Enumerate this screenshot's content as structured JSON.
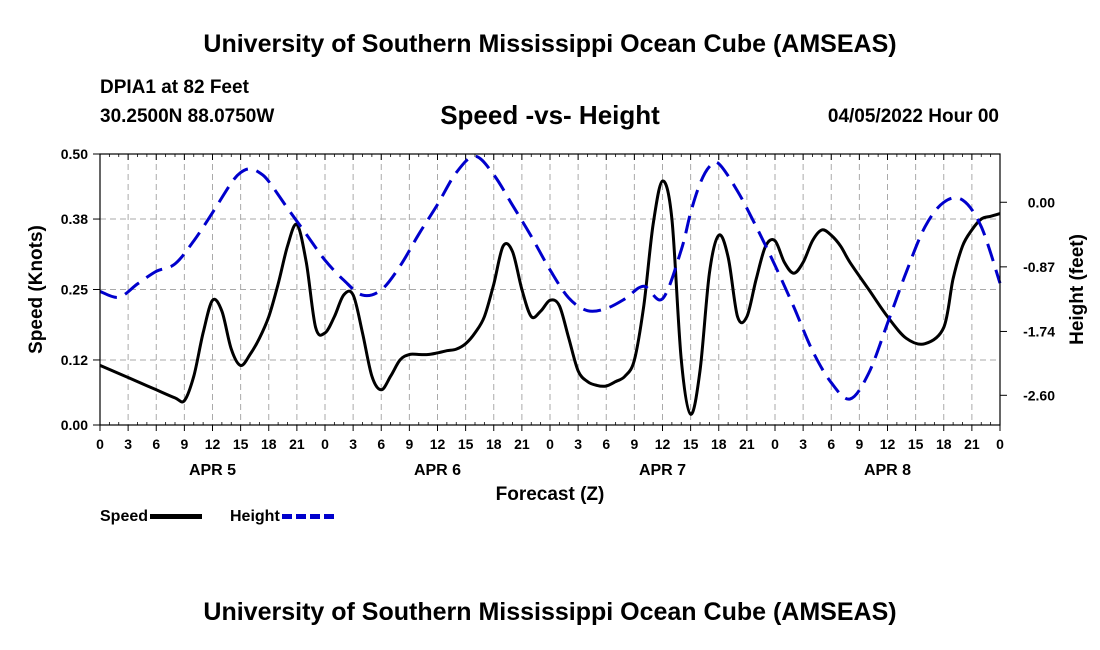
{
  "header": {
    "title": "University of Southern Mississippi Ocean Cube (AMSEAS)",
    "station": "DPIA1 at 82 Feet",
    "coords": "30.2500N  88.0750W",
    "subtitle": "Speed -vs- Height",
    "datetime": "04/05/2022 Hour 00"
  },
  "footer": {
    "title": "University of Southern Mississippi Ocean Cube (AMSEAS)"
  },
  "legend": {
    "speed_label": "Speed",
    "height_label": "Height"
  },
  "colors": {
    "speed": "#000000",
    "height": "#0000cc",
    "grid": "#aaaaaa"
  },
  "chart_data": {
    "type": "line",
    "title": "Speed -vs- Height",
    "xlabel": "Forecast (Z)",
    "ylabel_left": "Speed (Knots)",
    "ylabel_right": "Height (feet)",
    "x_unit": "hours since 04/05/2022 00Z",
    "xlim": [
      0,
      96
    ],
    "x_tick_values": [
      0,
      3,
      6,
      9,
      12,
      15,
      18,
      21,
      24,
      27,
      30,
      33,
      36,
      39,
      42,
      45,
      48,
      51,
      54,
      57,
      60,
      63,
      66,
      69,
      72,
      75,
      78,
      81,
      84,
      87,
      90,
      93,
      96
    ],
    "x_tick_labels": [
      "0",
      "3",
      "6",
      "9",
      "12",
      "15",
      "18",
      "21",
      "0",
      "3",
      "6",
      "9",
      "12",
      "15",
      "18",
      "21",
      "0",
      "3",
      "6",
      "9",
      "12",
      "15",
      "18",
      "21",
      "0",
      "3",
      "6",
      "9",
      "12",
      "15",
      "18",
      "21",
      "0"
    ],
    "day_labels": [
      {
        "x": 12,
        "label": "APR 5"
      },
      {
        "x": 36,
        "label": "APR 6"
      },
      {
        "x": 60,
        "label": "APR 7"
      },
      {
        "x": 84,
        "label": "APR 8"
      }
    ],
    "ylim_left": [
      0,
      0.5
    ],
    "y_ticks_left": [
      0.0,
      0.12,
      0.25,
      0.38,
      0.5
    ],
    "y_tick_labels_left": [
      "0.00",
      "0.12",
      "0.25",
      "0.38",
      "0.50"
    ],
    "ylim_right": [
      -3.0,
      0.65
    ],
    "y_ticks_right": [
      0.0,
      -0.87,
      -1.74,
      -2.6
    ],
    "y_tick_labels_right": [
      "0.00",
      "-0.87",
      "-1.74",
      "-2.60"
    ],
    "series": [
      {
        "name": "Speed",
        "axis": "left",
        "style": "solid",
        "x": [
          0,
          2,
          4,
          6,
          8,
          9,
          10,
          11,
          12,
          13,
          14,
          15,
          16,
          17,
          18,
          19,
          20,
          21,
          22,
          23,
          24,
          25,
          26,
          27,
          28,
          29,
          30,
          31,
          32,
          33,
          34,
          35,
          36,
          37,
          38,
          39,
          40,
          41,
          42,
          43,
          44,
          45,
          46,
          47,
          48,
          49,
          50,
          51,
          52,
          53,
          54,
          55,
          56,
          57,
          58,
          59,
          60,
          61,
          62,
          63,
          64,
          65,
          66,
          67,
          68,
          69,
          70,
          71,
          72,
          73,
          74,
          75,
          76,
          77,
          78,
          79,
          80,
          82,
          84,
          86,
          88,
          90,
          91,
          92,
          93,
          94,
          95,
          96
        ],
        "y": [
          0.11,
          0.095,
          0.08,
          0.065,
          0.05,
          0.045,
          0.09,
          0.17,
          0.23,
          0.21,
          0.14,
          0.11,
          0.13,
          0.16,
          0.2,
          0.26,
          0.33,
          0.37,
          0.3,
          0.18,
          0.17,
          0.2,
          0.24,
          0.24,
          0.17,
          0.09,
          0.065,
          0.09,
          0.12,
          0.13,
          0.13,
          0.13,
          0.133,
          0.137,
          0.14,
          0.15,
          0.17,
          0.2,
          0.26,
          0.33,
          0.32,
          0.25,
          0.2,
          0.21,
          0.23,
          0.22,
          0.16,
          0.1,
          0.08,
          0.073,
          0.072,
          0.08,
          0.09,
          0.12,
          0.22,
          0.37,
          0.45,
          0.38,
          0.12,
          0.02,
          0.1,
          0.28,
          0.35,
          0.31,
          0.2,
          0.2,
          0.27,
          0.33,
          0.34,
          0.3,
          0.28,
          0.3,
          0.34,
          0.36,
          0.35,
          0.33,
          0.3,
          0.25,
          0.2,
          0.16,
          0.15,
          0.18,
          0.27,
          0.33,
          0.36,
          0.38,
          0.385,
          0.39
        ]
      },
      {
        "name": "Height",
        "axis": "right",
        "style": "dashed",
        "x": [
          0,
          2,
          4,
          6,
          8,
          10,
          12,
          14,
          15,
          16,
          17,
          18,
          20,
          22,
          24,
          26,
          28,
          30,
          32,
          34,
          36,
          38,
          40,
          42,
          44,
          46,
          48,
          50,
          52,
          54,
          56,
          58,
          60,
          62,
          63,
          64,
          65,
          66,
          68,
          70,
          72,
          74,
          76,
          78,
          80,
          82,
          84,
          86,
          88,
          90,
          92,
          94,
          96
        ],
        "y": [
          -1.2,
          -1.28,
          -1.1,
          -0.93,
          -0.83,
          -0.52,
          -0.14,
          0.26,
          0.4,
          0.45,
          0.4,
          0.28,
          -0.08,
          -0.43,
          -0.78,
          -1.05,
          -1.25,
          -1.18,
          -0.86,
          -0.43,
          -0.03,
          0.4,
          0.62,
          0.37,
          -0.04,
          -0.46,
          -0.91,
          -1.29,
          -1.46,
          -1.43,
          -1.3,
          -1.13,
          -1.3,
          -0.64,
          -0.14,
          0.25,
          0.48,
          0.52,
          0.15,
          -0.33,
          -0.85,
          -1.41,
          -2.0,
          -2.43,
          -2.65,
          -2.3,
          -1.63,
          -0.94,
          -0.33,
          0.0,
          0.03,
          -0.33,
          -1.09
        ]
      }
    ]
  }
}
